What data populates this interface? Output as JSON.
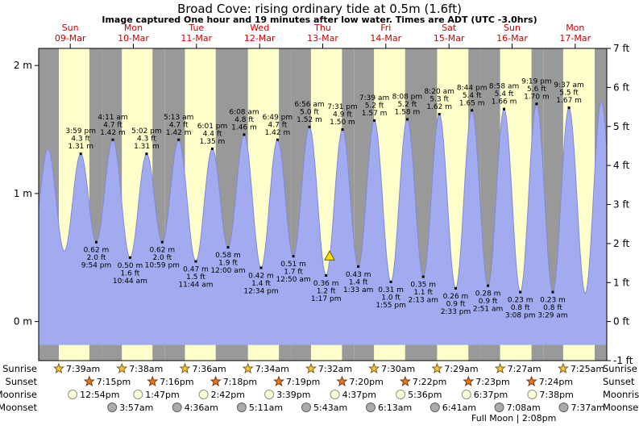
{
  "title": "Broad Cove: rising  ordinary tide at 0.5m (1.6ft)",
  "subtitle": "Image captured One hour and 19 minutes after low water. Times are ADT (UTC -3.0hrs)",
  "colors": {
    "day_band": "#ffffcc",
    "night_band": "#999999",
    "tide_fill": "#a2abf0",
    "tide_stroke": "#8289d8",
    "date_label": "#cc0000",
    "marker_fill": "#ffdf00",
    "marker_stroke": "#6b5900",
    "text": "#111111",
    "sunrise_icon": "#f2c53d",
    "sunrise_icon_stroke": "#7c5d1a",
    "sunset_icon": "#e6761f",
    "sunset_icon_stroke": "#743a10",
    "moonrise_icon": "#ffffd6",
    "moonrise_icon_stroke": "#8f8f8f",
    "moonset_icon": "#ababab",
    "moonset_icon_stroke": "#5f5f5f"
  },
  "chart_data": {
    "type": "area",
    "title": "Broad Cove: rising  ordinary tide at 0.5m (1.6ft)",
    "unit_left": "m",
    "unit_right": "ft",
    "ylim_ft": [
      -1,
      7
    ],
    "fill_base_ft": -0.6,
    "m_ticks": [
      {
        "label": "2 m",
        "m": 2
      },
      {
        "label": "1 m",
        "m": 1
      },
      {
        "label": "0 m",
        "m": 0
      }
    ],
    "ft_ticks": [
      {
        "label": "7 ft",
        "ft": 7
      },
      {
        "label": "6 ft",
        "ft": 6
      },
      {
        "label": "5 ft",
        "ft": 5
      },
      {
        "label": "4 ft",
        "ft": 4
      },
      {
        "label": "3 ft",
        "ft": 3
      },
      {
        "label": "2 ft",
        "ft": 2
      },
      {
        "label": "1 ft",
        "ft": 1
      },
      {
        "label": "0 ft",
        "ft": 0
      },
      {
        "label": "-1 ft",
        "ft": -1
      }
    ],
    "days": [
      {
        "dow": "Sun",
        "date": "09-Mar"
      },
      {
        "dow": "Mon",
        "date": "10-Mar"
      },
      {
        "dow": "Tue",
        "date": "11-Mar"
      },
      {
        "dow": "Wed",
        "date": "12-Mar"
      },
      {
        "dow": "Thu",
        "date": "13-Mar"
      },
      {
        "dow": "Fri",
        "date": "14-Mar"
      },
      {
        "dow": "Sat",
        "date": "15-Mar"
      },
      {
        "dow": "Sun",
        "date": "16-Mar"
      },
      {
        "dow": "Mon",
        "date": "17-Mar"
      }
    ],
    "extremes": [
      {
        "day": 0,
        "time": "3:30 am",
        "type": "high",
        "m": 1.35,
        "ft": 4.4,
        "labeled": false
      },
      {
        "day": 0,
        "time": "9:45 am",
        "type": "low",
        "m": 0.55,
        "ft": 1.8,
        "labeled": false
      },
      {
        "day": 0,
        "time": "3:59 pm",
        "type": "high",
        "m": 1.31,
        "ft": 4.3
      },
      {
        "day": 0,
        "time": "9:54 pm",
        "type": "low",
        "m": 0.62,
        "ft": 2.0
      },
      {
        "day": 1,
        "time": "4:11 am",
        "type": "high",
        "m": 1.42,
        "ft": 4.7
      },
      {
        "day": 1,
        "time": "10:44 am",
        "type": "low",
        "m": 0.5,
        "ft": 1.6
      },
      {
        "day": 1,
        "time": "5:02 pm",
        "type": "high",
        "m": 1.31,
        "ft": 4.3
      },
      {
        "day": 1,
        "time": "10:59 pm",
        "type": "low",
        "m": 0.62,
        "ft": 2.0
      },
      {
        "day": 2,
        "time": "5:13 am",
        "type": "high",
        "m": 1.42,
        "ft": 4.7
      },
      {
        "day": 2,
        "time": "11:44 am",
        "type": "low",
        "m": 0.47,
        "ft": 1.5
      },
      {
        "day": 2,
        "time": "6:01 pm",
        "type": "high",
        "m": 1.35,
        "ft": 4.4
      },
      {
        "day": 3,
        "time": "12:00 am",
        "type": "low",
        "m": 0.58,
        "ft": 1.9
      },
      {
        "day": 3,
        "time": "6:08 am",
        "type": "high",
        "m": 1.46,
        "ft": 4.8
      },
      {
        "day": 3,
        "time": "12:34 pm",
        "type": "low",
        "m": 0.42,
        "ft": 1.4
      },
      {
        "day": 3,
        "time": "6:49 pm",
        "type": "high",
        "m": 1.42,
        "ft": 4.7
      },
      {
        "day": 4,
        "time": "12:50 am",
        "type": "low",
        "m": 0.51,
        "ft": 1.7
      },
      {
        "day": 4,
        "time": "6:56 am",
        "type": "high",
        "m": 1.52,
        "ft": 5.0
      },
      {
        "day": 4,
        "time": "1:17 pm",
        "type": "low",
        "m": 0.36,
        "ft": 1.2
      },
      {
        "day": 4,
        "time": "7:31 pm",
        "type": "high",
        "m": 1.5,
        "ft": 4.9
      },
      {
        "day": 5,
        "time": "1:33 am",
        "type": "low",
        "m": 0.43,
        "ft": 1.4
      },
      {
        "day": 5,
        "time": "7:39 am",
        "type": "high",
        "m": 1.57,
        "ft": 5.2
      },
      {
        "day": 5,
        "time": "1:55 pm",
        "type": "low",
        "m": 0.31,
        "ft": 1.0
      },
      {
        "day": 5,
        "time": "8:08 pm",
        "type": "high",
        "m": 1.58,
        "ft": 5.2
      },
      {
        "day": 6,
        "time": "2:13 am",
        "type": "low",
        "m": 0.35,
        "ft": 1.1
      },
      {
        "day": 6,
        "time": "8:20 am",
        "type": "high",
        "m": 1.62,
        "ft": 5.3
      },
      {
        "day": 6,
        "time": "2:33 pm",
        "type": "low",
        "m": 0.26,
        "ft": 0.9
      },
      {
        "day": 6,
        "time": "8:44 pm",
        "type": "high",
        "m": 1.65,
        "ft": 5.4
      },
      {
        "day": 7,
        "time": "2:51 am",
        "type": "low",
        "m": 0.28,
        "ft": 0.9
      },
      {
        "day": 7,
        "time": "8:58 am",
        "type": "high",
        "m": 1.66,
        "ft": 5.4
      },
      {
        "day": 7,
        "time": "3:08 pm",
        "type": "low",
        "m": 0.23,
        "ft": 0.8
      },
      {
        "day": 7,
        "time": "9:19 pm",
        "type": "high",
        "m": 1.7,
        "ft": 5.6
      },
      {
        "day": 8,
        "time": "3:29 am",
        "type": "low",
        "m": 0.23,
        "ft": 0.8
      },
      {
        "day": 8,
        "time": "9:37 am",
        "type": "high",
        "m": 1.67,
        "ft": 5.5
      },
      {
        "day": 8,
        "time": "3:50 pm",
        "type": "low",
        "m": 0.22,
        "ft": 0.7,
        "labeled": false
      },
      {
        "day": 8,
        "time": "9:57 pm",
        "type": "high",
        "m": 1.72,
        "ft": 5.6,
        "labeled": false
      }
    ],
    "current_marker": {
      "day": 4,
      "time": "2:36 pm",
      "m": 0.5,
      "shape": "triangle"
    }
  },
  "almanac": {
    "rows": [
      {
        "id": "sunrise",
        "label": "Sunrise",
        "icon": "star",
        "entries": [
          {
            "day": 0,
            "time": "7:39am"
          },
          {
            "day": 1,
            "time": "7:38am"
          },
          {
            "day": 2,
            "time": "7:36am"
          },
          {
            "day": 3,
            "time": "7:34am"
          },
          {
            "day": 4,
            "time": "7:32am"
          },
          {
            "day": 5,
            "time": "7:30am"
          },
          {
            "day": 6,
            "time": "7:29am"
          },
          {
            "day": 7,
            "time": "7:27am"
          },
          {
            "day": 8,
            "time": "7:25am"
          }
        ]
      },
      {
        "id": "sunset",
        "label": "Sunset",
        "icon": "star",
        "entries": [
          {
            "day": 0,
            "time": "7:15pm"
          },
          {
            "day": 1,
            "time": "7:16pm"
          },
          {
            "day": 2,
            "time": "7:18pm"
          },
          {
            "day": 3,
            "time": "7:19pm"
          },
          {
            "day": 4,
            "time": "7:20pm"
          },
          {
            "day": 5,
            "time": "7:22pm"
          },
          {
            "day": 6,
            "time": "7:23pm"
          },
          {
            "day": 7,
            "time": "7:24pm"
          }
        ]
      },
      {
        "id": "moonrise",
        "label": "Moonrise",
        "icon": "circle",
        "entries": [
          {
            "day": 0,
            "time": "12:54pm"
          },
          {
            "day": 1,
            "time": "1:47pm"
          },
          {
            "day": 2,
            "time": "2:42pm"
          },
          {
            "day": 3,
            "time": "3:39pm"
          },
          {
            "day": 4,
            "time": "4:37pm"
          },
          {
            "day": 5,
            "time": "5:36pm"
          },
          {
            "day": 6,
            "time": "6:37pm"
          },
          {
            "day": 7,
            "time": "7:38pm"
          }
        ]
      },
      {
        "id": "moonset",
        "label": "Moonset",
        "icon": "circle",
        "entries": [
          {
            "day": 1,
            "time": "3:57am"
          },
          {
            "day": 2,
            "time": "4:36am"
          },
          {
            "day": 3,
            "time": "5:11am"
          },
          {
            "day": 4,
            "time": "5:43am"
          },
          {
            "day": 5,
            "time": "6:13am"
          },
          {
            "day": 6,
            "time": "6:41am"
          },
          {
            "day": 7,
            "time": "7:08am"
          },
          {
            "day": 8,
            "time": "7:37am"
          }
        ]
      }
    ],
    "full_moon": "Full Moon | 2:08pm"
  }
}
